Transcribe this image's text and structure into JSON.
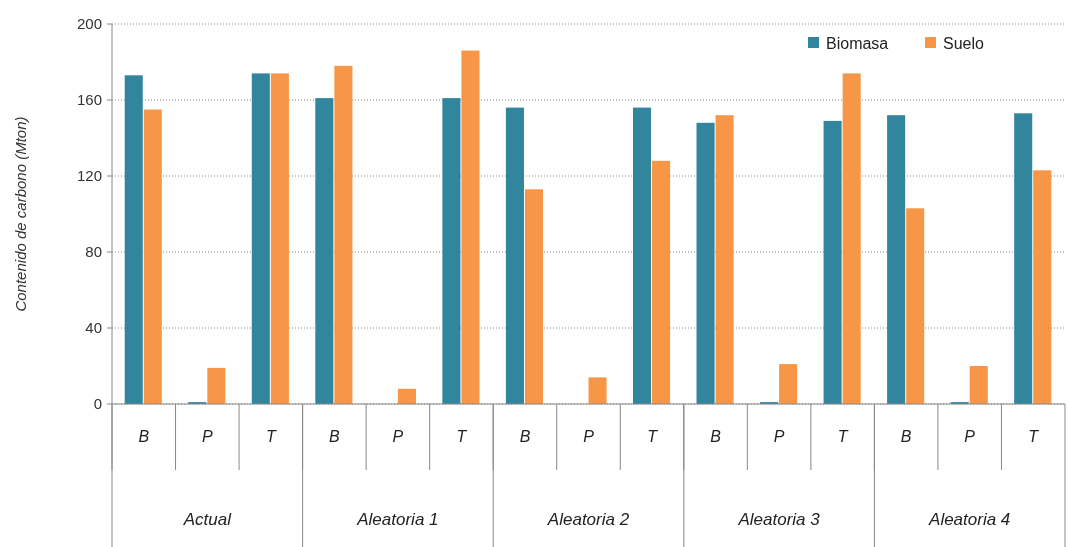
{
  "chart_data": {
    "type": "bar",
    "ylabel": "Contenido de carbono (Mton)",
    "categories": [
      "B",
      "P",
      "T",
      "B",
      "P",
      "T",
      "B",
      "P",
      "T",
      "B",
      "P",
      "T",
      "B",
      "P",
      "T"
    ],
    "annotations": [
      "Actual",
      "Aleatoria 1",
      "Aleatoria 2",
      "Aleatoria 3",
      "Aleatoria 4"
    ],
    "series": [
      {
        "name": "Biomasa",
        "color": "#31859c",
        "values": [
          173,
          1,
          174,
          161,
          0,
          161,
          156,
          0,
          156,
          148,
          1,
          149,
          152,
          1,
          153
        ]
      },
      {
        "name": "Suelo",
        "color": "#f79646",
        "values": [
          155,
          19,
          174,
          178,
          8,
          186,
          113,
          14,
          128,
          152,
          21,
          174,
          103,
          20,
          123
        ]
      }
    ],
    "ylim": [
      0,
      200
    ],
    "yticks": [
      0,
      40,
      80,
      120,
      160,
      200
    ],
    "grid": "y",
    "legend": "top right"
  }
}
